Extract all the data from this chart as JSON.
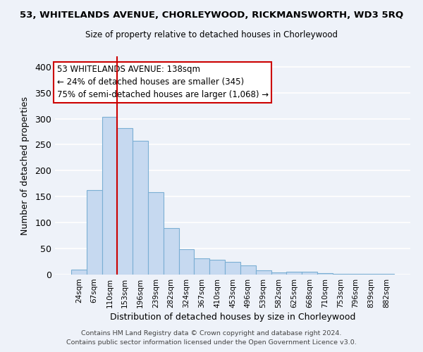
{
  "title_line1": "53, WHITELANDS AVENUE, CHORLEYWOOD, RICKMANSWORTH, WD3 5RQ",
  "title_line2": "Size of property relative to detached houses in Chorleywood",
  "xlabel": "Distribution of detached houses by size in Chorleywood",
  "ylabel": "Number of detached properties",
  "categories": [
    "24sqm",
    "67sqm",
    "110sqm",
    "153sqm",
    "196sqm",
    "239sqm",
    "282sqm",
    "324sqm",
    "367sqm",
    "410sqm",
    "453sqm",
    "496sqm",
    "539sqm",
    "582sqm",
    "625sqm",
    "668sqm",
    "710sqm",
    "753sqm",
    "796sqm",
    "839sqm",
    "882sqm"
  ],
  "values": [
    10,
    163,
    303,
    282,
    258,
    158,
    90,
    49,
    31,
    29,
    25,
    17,
    8,
    4,
    5,
    5,
    3,
    2,
    2,
    2,
    1
  ],
  "bar_color": "#c6d9f0",
  "bar_edge_color": "#7bafd4",
  "vline_x_index": 3,
  "vline_color": "#cc0000",
  "annotation_title": "53 WHITELANDS AVENUE: 138sqm",
  "annotation_line1": "← 24% of detached houses are smaller (345)",
  "annotation_line2": "75% of semi-detached houses are larger (1,068) →",
  "annotation_box_color": "#ffffff",
  "annotation_box_edge": "#cc0000",
  "ylim": [
    0,
    420
  ],
  "yticks": [
    0,
    50,
    100,
    150,
    200,
    250,
    300,
    350,
    400
  ],
  "footer1": "Contains HM Land Registry data © Crown copyright and database right 2024.",
  "footer2": "Contains public sector information licensed under the Open Government Licence v3.0.",
  "background_color": "#eef2f9",
  "grid_color": "#ffffff"
}
